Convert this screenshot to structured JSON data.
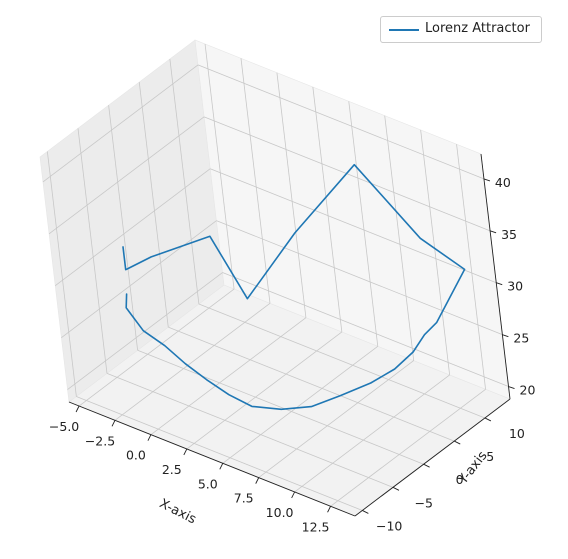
{
  "chart_data": {
    "type": "line",
    "projection": "3d",
    "series": [
      {
        "name": "Lorenz Attractor",
        "color": "#1f77b4",
        "points": [
          [
            -1.0,
            -10.0,
            35.8
          ],
          [
            -1.0,
            -10.0,
            33.6
          ],
          [
            0.0,
            -8.0,
            34.5
          ],
          [
            3.0,
            -5.0,
            36.8
          ],
          [
            5.2,
            -5.0,
            32.0
          ],
          [
            6.8,
            0.0,
            37.0
          ],
          [
            8.8,
            6.0,
            42.0
          ],
          [
            12.5,
            7.0,
            36.5
          ],
          [
            14.0,
            10.0,
            33.0
          ],
          [
            11.5,
            10.0,
            26.5
          ],
          [
            11.0,
            9.0,
            25.5
          ],
          [
            10.5,
            8.0,
            24.0
          ],
          [
            9.6,
            6.8,
            22.4
          ],
          [
            8.6,
            5.0,
            21.3
          ],
          [
            7.5,
            2.5,
            20.6
          ],
          [
            6.5,
            0.0,
            20.1
          ],
          [
            5.5,
            -2.5,
            20.4
          ],
          [
            4.6,
            -5.0,
            21.3
          ],
          [
            3.8,
            -6.6,
            22.7
          ],
          [
            3.0,
            -8.0,
            24.3
          ],
          [
            2.2,
            -9.3,
            26.0
          ],
          [
            1.2,
            -10.0,
            27.5
          ],
          [
            0.0,
            -10.5,
            28.5
          ],
          [
            -1.0,
            -10.6,
            30.2
          ],
          [
            -1.0,
            -10.3,
            31.4
          ]
        ]
      }
    ],
    "xlabel": "X-axis",
    "ylabel": "Y-axis",
    "zlabel": "",
    "xlim": [
      -5.7,
      14.2
    ],
    "ylim": [
      -11.2,
      14.1
    ],
    "zlim": [
      18.8,
      42.4
    ],
    "xticks": [
      -5.0,
      -2.5,
      0.0,
      2.5,
      5.0,
      7.5,
      10.0,
      12.5
    ],
    "xtick_labels": [
      "−5.0",
      "−2.5",
      "0.0",
      "2.5",
      "5.0",
      "7.5",
      "10.0",
      "12.5"
    ],
    "yticks": [
      -10,
      -5,
      0,
      5,
      10
    ],
    "ytick_labels": [
      "−10",
      "−5",
      "0",
      "5",
      "10"
    ],
    "zticks": [
      20,
      25,
      30,
      35,
      40
    ],
    "ztick_labels": [
      "20",
      "25",
      "30",
      "35",
      "40"
    ],
    "grid": true,
    "legend_position": "top-right"
  }
}
